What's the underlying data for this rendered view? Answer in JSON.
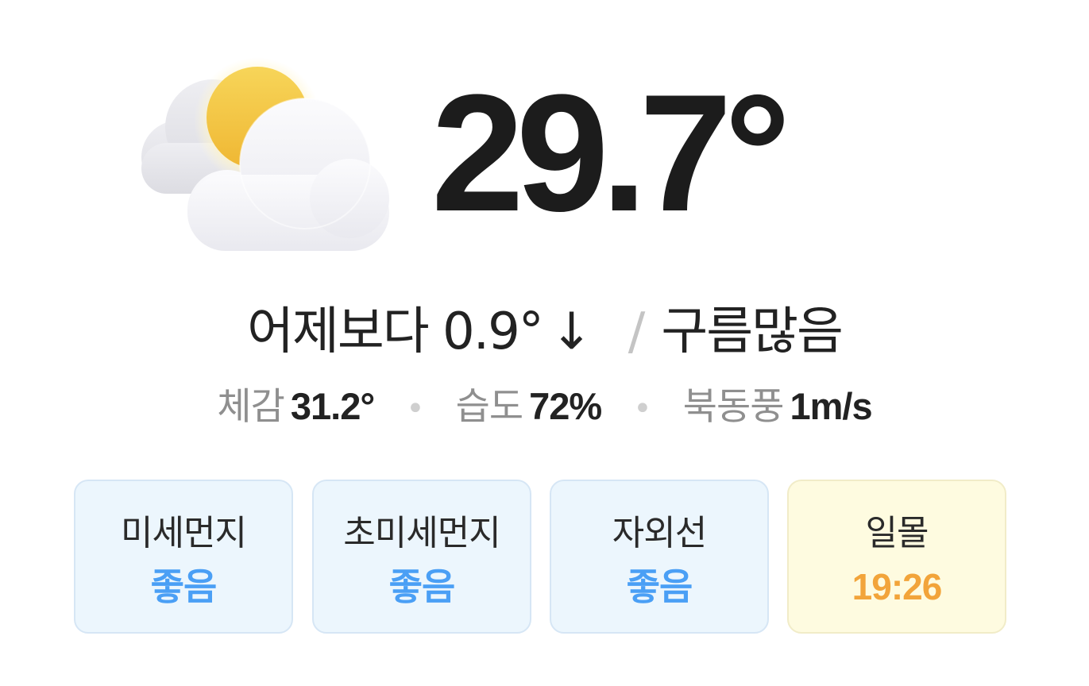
{
  "current": {
    "temperature": "29.7°",
    "icon": "partly-cloudy-icon"
  },
  "summary": {
    "comparison_label": "어제보다",
    "comparison_value": "0.9°",
    "comparison_arrow": "↓",
    "separator": "/",
    "condition": "구름많음"
  },
  "details": [
    {
      "label": "체감",
      "value": "31.2°"
    },
    {
      "label": "습도",
      "value": "72%"
    },
    {
      "label": "북동풍",
      "value": "1m/s"
    }
  ],
  "cards": [
    {
      "label": "미세먼지",
      "value": "좋음",
      "color": "#4a9ff5"
    },
    {
      "label": "초미세먼지",
      "value": "좋음",
      "color": "#4a9ff5"
    },
    {
      "label": "자외선",
      "value": "좋음",
      "color": "#4a9ff5"
    },
    {
      "label": "일몰",
      "value": "19:26",
      "color": "#f2a43a"
    }
  ]
}
